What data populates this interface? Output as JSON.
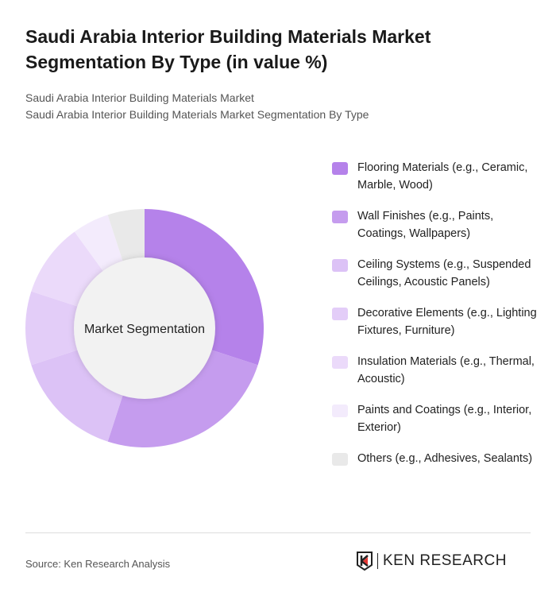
{
  "title": "Saudi Arabia Interior Building Materials Market Segmentation By Type (in value %)",
  "subtitle1": "Saudi Arabia Interior Building Materials Market",
  "subtitle2": "Saudi Arabia Interior Building Materials Market Segmentation By Type",
  "footer": {
    "source": "Source: Ken Research Analysis",
    "logo_text": "KEN RESEARCH"
  },
  "chart_data": {
    "type": "pie",
    "variant": "donut",
    "center_label": "Market Segmentation",
    "legend_position": "right",
    "categories": [
      "Flooring Materials (e.g., Ceramic, Marble, Wood)",
      "Wall Finishes (e.g., Paints, Coatings, Wallpapers)",
      "Ceiling Systems (e.g., Suspended Ceilings, Acoustic Panels)",
      "Decorative Elements (e.g., Lighting Fixtures, Furniture)",
      "Insulation Materials (e.g., Thermal, Acoustic)",
      "Paints and Coatings (e.g., Interior, Exterior)",
      "Others (e.g., Adhesives, Sealants)"
    ],
    "values": [
      30,
      25,
      15,
      10,
      10,
      5,
      5
    ],
    "colors": [
      "#b582ea",
      "#c59cee",
      "#dcc2f6",
      "#e3cdf8",
      "#ebdafa",
      "#f3ebfc",
      "#e9e9e9"
    ]
  }
}
